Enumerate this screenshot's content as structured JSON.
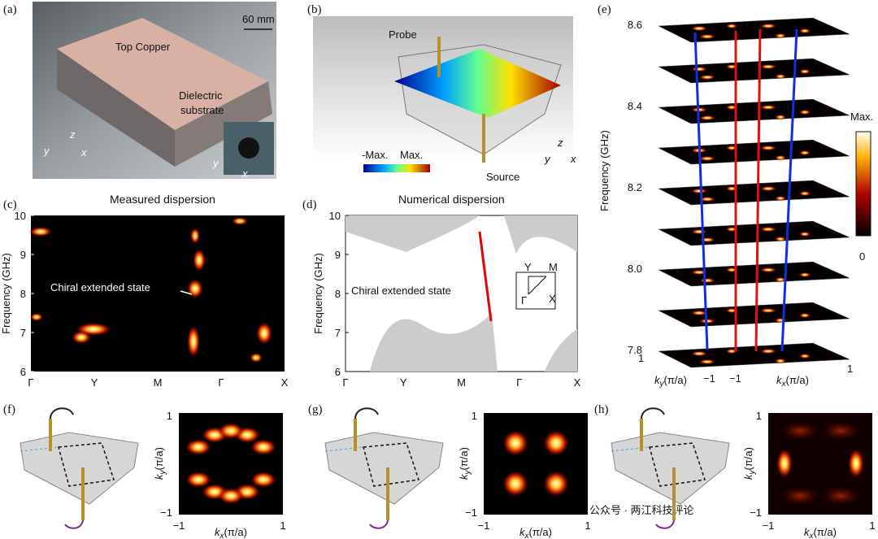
{
  "panels": {
    "a": {
      "label": "(a)",
      "scale": "60 mm",
      "top": "Top Copper",
      "substrate": [
        "Dielectric",
        "substrate"
      ],
      "axes": [
        "z",
        "y",
        "x"
      ],
      "inset_axes": [
        "y",
        "x"
      ]
    },
    "b": {
      "label": "(b)",
      "probe": "Probe",
      "source": "Source",
      "colorbar": [
        "-Max.",
        "Max."
      ],
      "axes": [
        "z",
        "y",
        "x"
      ]
    },
    "c": {
      "label": "(c)",
      "title": "Measured dispersion",
      "ylabel": "Frequency (GHz)",
      "yticks": [
        "10",
        "9",
        "8",
        "7",
        "6"
      ],
      "xticks": [
        "Γ",
        "Y",
        "M",
        "Γ",
        "X"
      ],
      "annotation": "Chiral extended state"
    },
    "d": {
      "label": "(d)",
      "title": "Numerical dispersion",
      "ylabel": "Frequency (GHz)",
      "yticks": [
        "10",
        "9",
        "8",
        "7",
        "6"
      ],
      "xticks": [
        "Γ",
        "Y",
        "M",
        "Γ",
        "X"
      ],
      "annotation": "Chiral extended state",
      "inset": [
        "Y",
        "M",
        "Γ",
        "X"
      ]
    },
    "e": {
      "label": "(e)",
      "ylabel": "Frequency (GHz)",
      "yticks": [
        "8.6",
        "8.4",
        "8.2",
        "8.0",
        "7.8"
      ],
      "k": "k",
      "sub_y": "y",
      "sub_x": "x",
      "unit": "(π/a)",
      "ky_ticks": [
        "1",
        "−1"
      ],
      "kx_ticks": [
        "−1",
        "1"
      ],
      "colorbar": [
        "Max.",
        "0"
      ]
    },
    "f": {
      "label": "(f)",
      "k": "k",
      "sub_y": "y",
      "sub_x": "x",
      "unit": "(π/a)",
      "yticks": [
        "1",
        "−1"
      ],
      "xticks": [
        "−1",
        "1"
      ]
    },
    "g": {
      "label": "(g)",
      "k": "k",
      "sub_y": "y",
      "sub_x": "x",
      "unit": "(π/a)",
      "yticks": [
        "1",
        "−1"
      ],
      "xticks": [
        "−1",
        "1"
      ]
    },
    "h": {
      "label": "(h)",
      "k": "k",
      "sub_y": "y",
      "sub_x": "x",
      "unit": "(π/a)",
      "yticks": [
        "1",
        "−1"
      ],
      "xticks": [
        "−1",
        "1"
      ]
    }
  },
  "watermark": "公众号 · 两江科技评论"
}
